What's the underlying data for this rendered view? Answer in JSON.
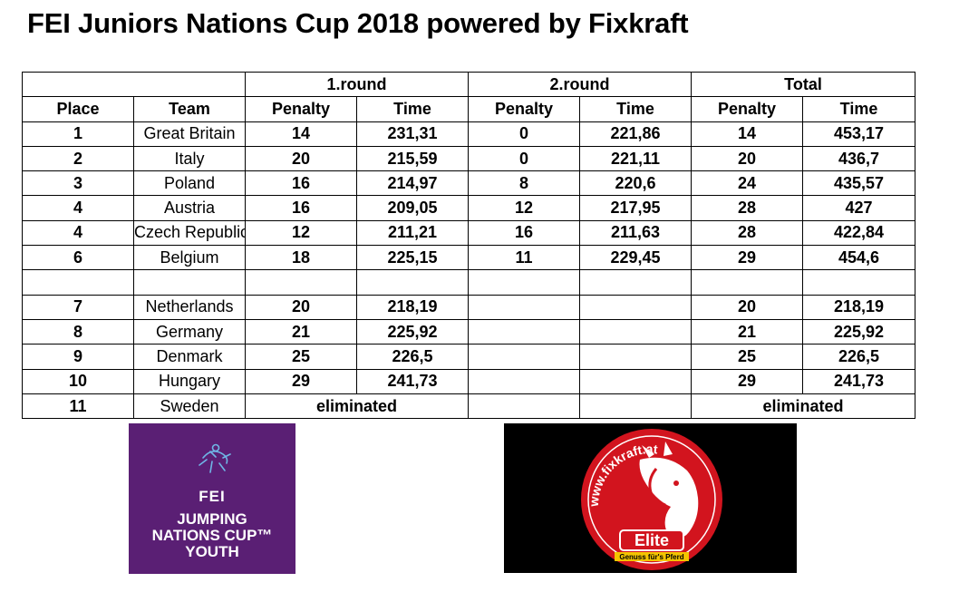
{
  "title": "FEI Juniors Nations Cup 2018 powered by Fixkraft",
  "groups": {
    "round1": "1.round",
    "round2": "2.round",
    "total": "Total"
  },
  "headers": {
    "place": "Place",
    "team": "Team",
    "penalty": "Penalty",
    "time": "Time"
  },
  "rows": [
    {
      "place": "1",
      "team": "Great Britain",
      "r1p": "14",
      "r1t": "231,31",
      "r2p": "0",
      "r2t": "221,86",
      "tp": "14",
      "tt": "453,17"
    },
    {
      "place": "2",
      "team": "Italy",
      "r1p": "20",
      "r1t": "215,59",
      "r2p": "0",
      "r2t": "221,11",
      "tp": "20",
      "tt": "436,7"
    },
    {
      "place": "3",
      "team": "Poland",
      "r1p": "16",
      "r1t": "214,97",
      "r2p": "8",
      "r2t": "220,6",
      "tp": "24",
      "tt": "435,57"
    },
    {
      "place": "4",
      "team": "Austria",
      "r1p": "16",
      "r1t": "209,05",
      "r2p": "12",
      "r2t": "217,95",
      "tp": "28",
      "tt": "427"
    },
    {
      "place": "4",
      "team": "Czech Republic",
      "r1p": "12",
      "r1t": "211,21",
      "r2p": "16",
      "r2t": "211,63",
      "tp": "28",
      "tt": "422,84"
    },
    {
      "place": "6",
      "team": "Belgium",
      "r1p": "18",
      "r1t": "225,15",
      "r2p": "11",
      "r2t": "229,45",
      "tp": "29",
      "tt": "454,6"
    },
    {
      "place": "",
      "team": "",
      "r1p": "",
      "r1t": "",
      "r2p": "",
      "r2t": "",
      "tp": "",
      "tt": ""
    },
    {
      "place": "7",
      "team": "Netherlands",
      "r1p": "20",
      "r1t": "218,19",
      "r2p": "",
      "r2t": "",
      "tp": "20",
      "tt": "218,19"
    },
    {
      "place": "8",
      "team": "Germany",
      "r1p": "21",
      "r1t": "225,92",
      "r2p": "",
      "r2t": "",
      "tp": "21",
      "tt": "225,92"
    },
    {
      "place": "9",
      "team": "Denmark",
      "r1p": "25",
      "r1t": "226,5",
      "r2p": "",
      "r2t": "",
      "tp": "25",
      "tt": "226,5"
    },
    {
      "place": "10",
      "team": "Hungary",
      "r1p": "29",
      "r1t": "241,73",
      "r2p": "",
      "r2t": "",
      "tp": "29",
      "tt": "241,73"
    }
  ],
  "last_row": {
    "place": "11",
    "team": "Sweden",
    "r1": "eliminated",
    "total": "eliminated"
  },
  "logos": {
    "fei": {
      "mark": "FEI",
      "line1": "JUMPING",
      "line2": "NATIONS CUP™",
      "line3": "YOUTH",
      "bg": "#5a1f74"
    },
    "elite": {
      "url": "www.fixkraft.at",
      "brand": "Elite",
      "slogan": "Genuss für's Pferd",
      "red": "#d2141e"
    }
  }
}
